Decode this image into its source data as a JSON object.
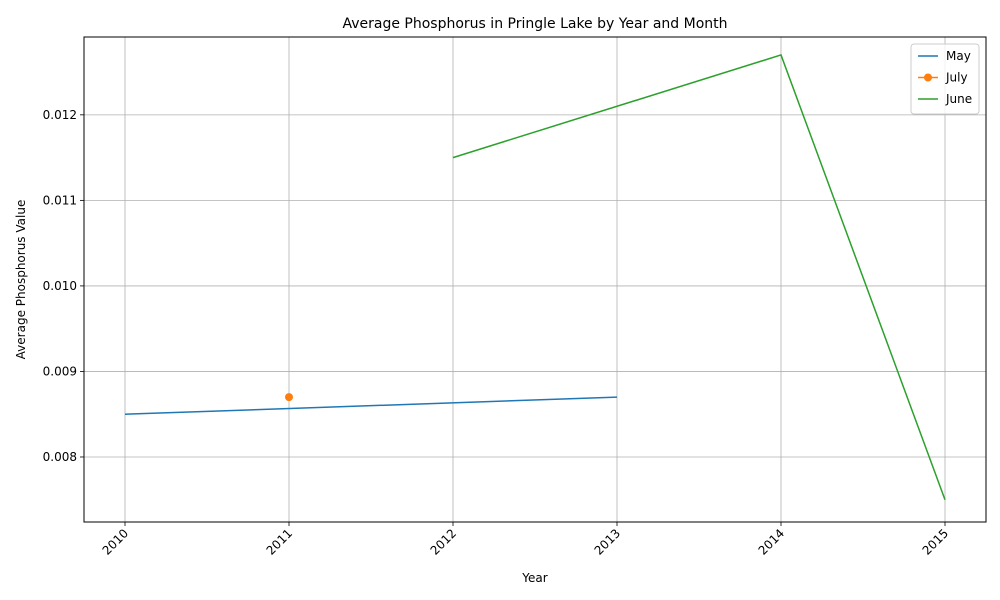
{
  "chart_data": {
    "type": "line",
    "title": "Average Phosphorus in Pringle Lake by Year and Month",
    "xlabel": "Year",
    "ylabel": "Average Phosphorus Value",
    "x_ticks": [
      "2010",
      "2011",
      "2012",
      "2013",
      "2014",
      "2015"
    ],
    "y_ticks": [
      "0.008",
      "0.009",
      "0.010",
      "0.011",
      "0.012"
    ],
    "xlim": [
      2009.75,
      2015.25
    ],
    "ylim": [
      0.00724,
      0.01291
    ],
    "grid": true,
    "legend_position": "top-right",
    "series": [
      {
        "name": "May",
        "color": "#1f77b4",
        "marker": false,
        "x": [
          2010,
          2013
        ],
        "y": [
          0.0085,
          0.0087
        ]
      },
      {
        "name": "July",
        "color": "#ff7f0e",
        "marker": true,
        "x": [
          2011
        ],
        "y": [
          0.0087
        ]
      },
      {
        "name": "June",
        "color": "#2ca02c",
        "marker": false,
        "x": [
          2012,
          2014,
          2015
        ],
        "y": [
          0.0115,
          0.0127,
          0.0075
        ]
      }
    ]
  }
}
